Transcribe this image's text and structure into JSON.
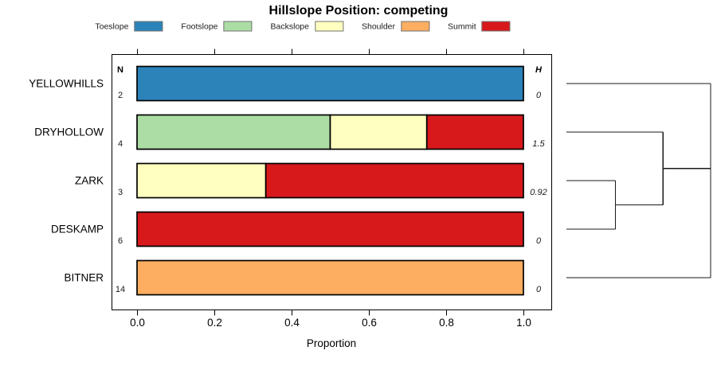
{
  "chart_data": {
    "type": "bar",
    "variant": "horizontal-stacked-proportion-with-dendrogram",
    "title": "Hillslope Position: competing",
    "xlabel": "Proportion",
    "xlim": [
      0,
      1
    ],
    "xticks": [
      0,
      0.2,
      0.4,
      0.6,
      0.8,
      1.0
    ],
    "xtick_labels": [
      "0.0",
      "0.2",
      "0.4",
      "0.6",
      "0.8",
      "1.0"
    ],
    "n_column_header": "N",
    "h_column_header": "H",
    "legend": [
      {
        "label": "Toeslope",
        "color": "#2B83BA"
      },
      {
        "label": "Footslope",
        "color": "#ABDDA4"
      },
      {
        "label": "Backslope",
        "color": "#FFFFBF"
      },
      {
        "label": "Shoulder",
        "color": "#FDAE61"
      },
      {
        "label": "Summit",
        "color": "#D7191C"
      }
    ],
    "rows": [
      {
        "site": "YELLOWHILLS",
        "n": 2,
        "h": "0",
        "segments": [
          {
            "class": "Toeslope",
            "value": 1.0
          }
        ]
      },
      {
        "site": "DRYHOLLOW",
        "n": 4,
        "h": "1.5",
        "segments": [
          {
            "class": "Footslope",
            "value": 0.5
          },
          {
            "class": "Backslope",
            "value": 0.25
          },
          {
            "class": "Summit",
            "value": 0.25
          }
        ]
      },
      {
        "site": "ZARK",
        "n": 3,
        "h": "0.92",
        "segments": [
          {
            "class": "Backslope",
            "value": 0.3333
          },
          {
            "class": "Summit",
            "value": 0.6667
          }
        ]
      },
      {
        "site": "DESKAMP",
        "n": 6,
        "h": "0",
        "segments": [
          {
            "class": "Summit",
            "value": 1.0
          }
        ]
      },
      {
        "site": "BITNER",
        "n": 14,
        "h": "0",
        "segments": [
          {
            "class": "Shoulder",
            "value": 1.0
          }
        ]
      }
    ],
    "dendrogram": {
      "merges": [
        {
          "a": "ZARK",
          "b": "DESKAMP",
          "height": 0.34
        },
        {
          "a": "DRYHOLLOW",
          "b": "m0",
          "height": 0.67
        },
        {
          "a": "YELLOWHILLS",
          "b": "m1",
          "height": 1.0
        },
        {
          "a": "m2",
          "b": "BITNER",
          "height": 1.0
        }
      ]
    }
  }
}
